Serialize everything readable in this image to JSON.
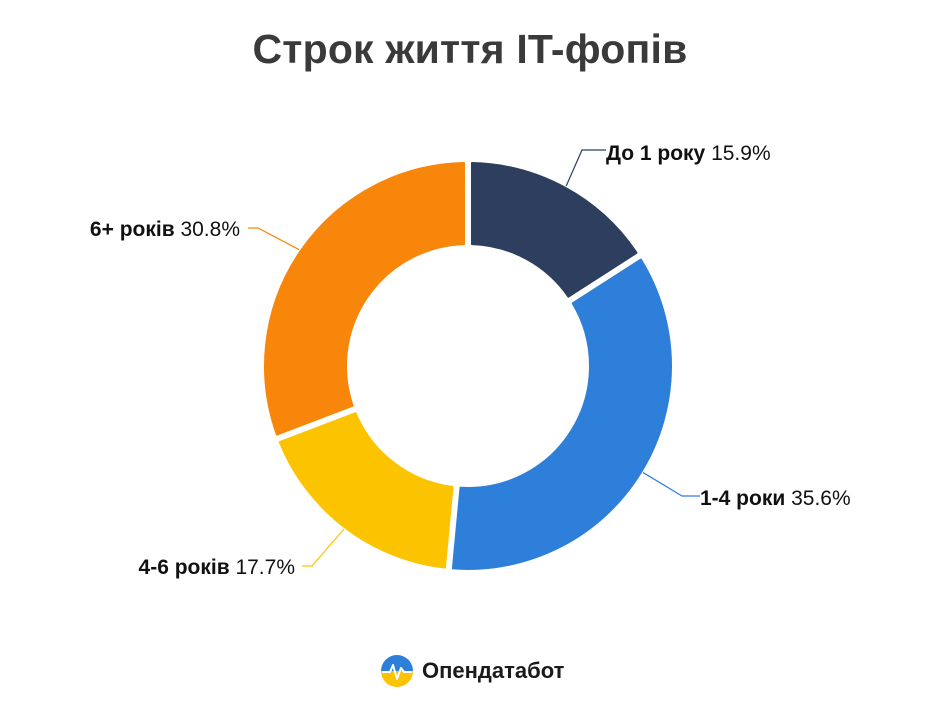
{
  "chart_data": {
    "type": "pie",
    "donut": true,
    "title": "Строк життя IT-фопів",
    "slices": [
      {
        "name": "До 1 року",
        "value": 15.9,
        "value_label": "15.9%",
        "color": "#2d3e5e"
      },
      {
        "name": "1-4 роки",
        "value": 35.6,
        "value_label": "35.6%",
        "color": "#2e7fd9"
      },
      {
        "name": "4-6 років",
        "value": 17.7,
        "value_label": "17.7%",
        "color": "#fcc300"
      },
      {
        "name": "6+ років",
        "value": 30.8,
        "value_label": "30.8%",
        "color": "#f7860a"
      }
    ]
  },
  "brand": {
    "name": "Опендатабот",
    "logo_icon": "opendatabot-logo-icon",
    "logo_colors": [
      "#2e7fd9",
      "#fcc300"
    ]
  }
}
